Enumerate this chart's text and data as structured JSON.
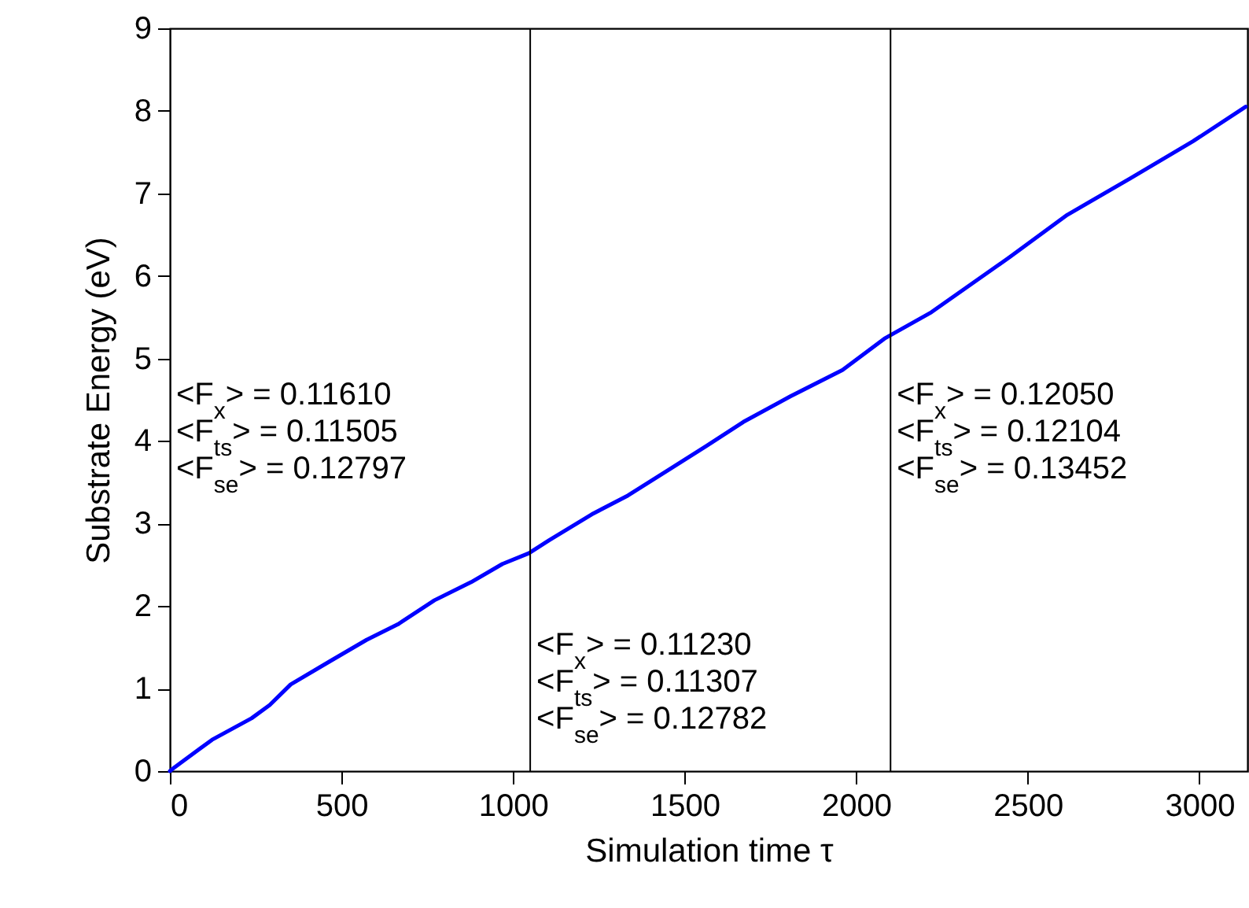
{
  "chart_data": {
    "type": "line",
    "xlabel": "Simulation time τ",
    "ylabel": "Substrate Energy (eV)",
    "xlim": [
      0,
      3140
    ],
    "xticks": [
      0,
      500,
      1000,
      1500,
      2000,
      2500,
      3000
    ],
    "ylim": [
      0,
      9
    ],
    "yticks": [
      0,
      1,
      2,
      3,
      4,
      5,
      6,
      7,
      8,
      9
    ],
    "grid": false,
    "marker": "none",
    "line_style": "solid",
    "series": [
      {
        "color": "#0000ff",
        "x": [
          0,
          9,
          123,
          238,
          291,
          352,
          466,
          573,
          665,
          771,
          878,
          969,
          1046,
          1106,
          1229,
          1335,
          1457,
          1564,
          1671,
          1808,
          1960,
          2082,
          2219,
          2448,
          2615,
          2798,
          2981,
          3135
        ],
        "values": [
          0,
          0.03,
          0.38,
          0.64,
          0.8,
          1.05,
          1.33,
          1.59,
          1.78,
          2.07,
          2.29,
          2.51,
          2.64,
          2.8,
          3.11,
          3.34,
          3.66,
          3.94,
          4.23,
          4.54,
          4.86,
          5.24,
          5.56,
          6.23,
          6.74,
          7.18,
          7.63,
          8.05
        ]
      }
    ],
    "ref_lines": [
      {
        "axis": "x",
        "value": 1050,
        "color": "#000000"
      },
      {
        "axis": "x",
        "value": 2100,
        "color": "#000000"
      }
    ],
    "annotations": [
      "<F$_{x}$> = 0.11610",
      "<F$_{ts}$> = 0.11505",
      "<F$_{se}$> = 0.12797",
      "<F$_{x}$> = 0.11230",
      "<F$_{ts}$> = 0.11307",
      "<F$_{se}$> = 0.12782",
      "<F$_{x}$> = 0.12050",
      "<F$_{ts}$> = 0.12104",
      "<F$_{se}$> = 0.13452"
    ]
  }
}
